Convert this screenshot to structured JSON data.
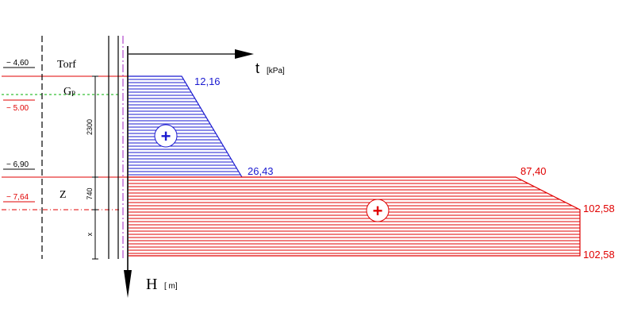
{
  "colors": {
    "blue": "#1a1ad0",
    "red": "#e00000",
    "green": "#00b000",
    "purple": "#a020c0",
    "black": "#000000"
  },
  "axes": {
    "t_symbol": "t",
    "t_unit": "[kPa]",
    "h_symbol": "H",
    "h_unit": "[ m]"
  },
  "levels": {
    "l1": "− 4,60",
    "l2": "− 5.00",
    "l3": "− 6,90",
    "l4": "− 7,64"
  },
  "layers": {
    "torf": "Torf",
    "gp_main": "G",
    "gp_sub": "P",
    "z": "Z"
  },
  "dimensions": {
    "d1": "2300",
    "d2": "740",
    "d3": "x"
  },
  "values": {
    "v1": "12,16",
    "v2": "26,43",
    "v3": "87,40",
    "v4": "102,58",
    "v5": "102,58"
  },
  "signs": {
    "plus": "+"
  }
}
